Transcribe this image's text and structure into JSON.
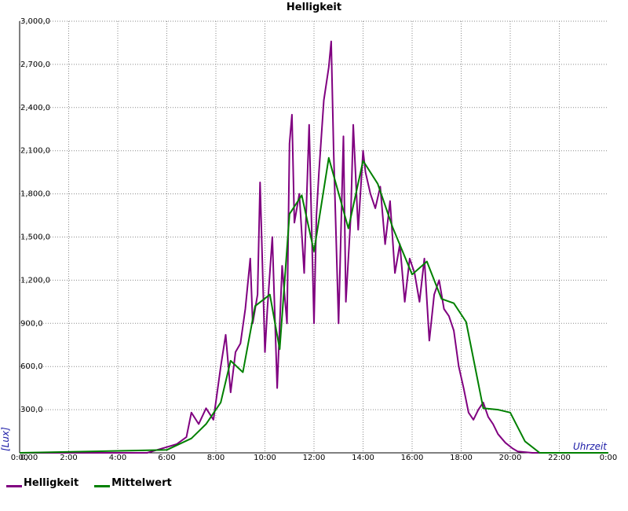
{
  "chart_data": {
    "type": "line",
    "title": "Helligkeit",
    "xlabel": "Uhrzeit",
    "ylabel": "[Lux]",
    "xlim": [
      0,
      24
    ],
    "ylim": [
      0,
      3000
    ],
    "x_ticks": [
      "0:00",
      "2:00",
      "4:00",
      "6:00",
      "8:00",
      "10:00",
      "12:00",
      "14:00",
      "16:00",
      "18:00",
      "20:00",
      "22:00",
      "0:00"
    ],
    "y_ticks": [
      "0,00",
      "300,0",
      "600,0",
      "900,0",
      "1,200,0",
      "1,500,0",
      "1,800,0",
      "2,100,0",
      "2,400,0",
      "2,700,0",
      "3,000,0"
    ],
    "grid": true,
    "legend_position": "bottom-left",
    "series": [
      {
        "name": "Helligkeit",
        "color": "#800080",
        "x": [
          0,
          5.2,
          5.6,
          6.0,
          6.4,
          6.8,
          7.0,
          7.3,
          7.6,
          7.9,
          8.2,
          8.4,
          8.6,
          8.8,
          9.0,
          9.2,
          9.4,
          9.5,
          9.7,
          9.8,
          10.0,
          10.1,
          10.3,
          10.5,
          10.7,
          10.9,
          11.0,
          11.1,
          11.2,
          11.4,
          11.6,
          11.8,
          12.0,
          12.1,
          12.2,
          12.4,
          12.6,
          12.7,
          12.8,
          13.0,
          13.2,
          13.3,
          13.5,
          13.6,
          13.8,
          14.0,
          14.1,
          14.3,
          14.5,
          14.7,
          14.9,
          15.1,
          15.3,
          15.5,
          15.7,
          15.9,
          16.1,
          16.3,
          16.5,
          16.7,
          16.9,
          17.1,
          17.3,
          17.5,
          17.7,
          17.9,
          18.1,
          18.3,
          18.5,
          18.7,
          18.9,
          19.1,
          19.3,
          19.5,
          19.8,
          20.1,
          20.3,
          20.6,
          20.9,
          21.2,
          21.5,
          21.8,
          24
        ],
        "y": [
          0,
          0,
          20,
          40,
          60,
          110,
          280,
          200,
          310,
          230,
          600,
          820,
          420,
          700,
          760,
          1000,
          1350,
          900,
          1100,
          1880,
          700,
          1000,
          1500,
          450,
          1300,
          900,
          2150,
          2350,
          1600,
          1800,
          1250,
          2280,
          900,
          1650,
          1950,
          2450,
          2680,
          2860,
          2100,
          900,
          2200,
          1050,
          1650,
          2280,
          1550,
          2100,
          1950,
          1800,
          1700,
          1850,
          1450,
          1750,
          1250,
          1450,
          1050,
          1350,
          1250,
          1050,
          1350,
          780,
          1100,
          1200,
          1000,
          950,
          850,
          600,
          450,
          280,
          230,
          300,
          350,
          250,
          200,
          130,
          70,
          30,
          10,
          5,
          0,
          0,
          0,
          0,
          0
        ]
      },
      {
        "name": "Mittelwert",
        "color": "#008000",
        "x": [
          0,
          6.0,
          7.0,
          7.6,
          8.2,
          8.6,
          9.1,
          9.6,
          10.2,
          10.6,
          11.0,
          11.5,
          12.0,
          12.6,
          13.4,
          14.0,
          14.6,
          15.2,
          16.0,
          16.6,
          17.2,
          17.7,
          18.2,
          18.9,
          19.5,
          20.0,
          20.6,
          21.2,
          22.0,
          24
        ],
        "y": [
          0,
          20,
          100,
          200,
          350,
          640,
          560,
          1020,
          1100,
          720,
          1660,
          1790,
          1400,
          2050,
          1560,
          2030,
          1870,
          1570,
          1240,
          1330,
          1070,
          1040,
          910,
          310,
          300,
          280,
          80,
          0,
          0,
          0
        ]
      }
    ]
  }
}
